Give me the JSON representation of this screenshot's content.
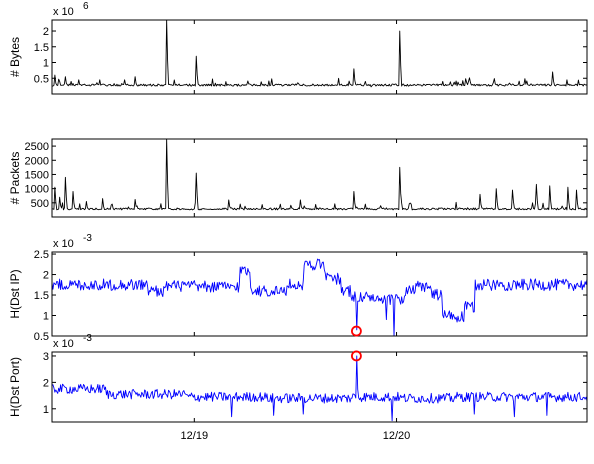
{
  "chart_data": [
    {
      "type": "line",
      "ylabel": "# Bytes",
      "y_multiplier": "x 10",
      "y_exponent": "6",
      "yticks": [
        0.5,
        1,
        1.5,
        2
      ],
      "ytick_labels": [
        "0.5",
        "1",
        "1.5",
        "2"
      ],
      "ylim": [
        0,
        2.35
      ],
      "xlim": [
        0,
        100
      ],
      "line_color": "#000000",
      "grid": false,
      "baseline": 0.25,
      "spikes": [
        {
          "x": 0.5,
          "value": 0.6
        },
        {
          "x": 1.5,
          "value": 0.4
        },
        {
          "x": 2.5,
          "value": 0.55
        },
        {
          "x": 3.5,
          "value": 0.4
        },
        {
          "x": 5.0,
          "value": 0.45
        },
        {
          "x": 9.0,
          "value": 0.45
        },
        {
          "x": 13.5,
          "value": 0.45
        },
        {
          "x": 15.5,
          "value": 0.55
        },
        {
          "x": 21.5,
          "value": 2.35
        },
        {
          "x": 27.0,
          "value": 1.2
        },
        {
          "x": 56.5,
          "value": 0.8
        },
        {
          "x": 59.5,
          "value": 0.3
        },
        {
          "x": 65.0,
          "value": 2.0
        },
        {
          "x": 73.0,
          "value": 0.4
        },
        {
          "x": 93.5,
          "value": 0.7
        }
      ]
    },
    {
      "type": "line",
      "ylabel": "# Packets",
      "yticks": [
        500,
        1000,
        1500,
        2000,
        2500
      ],
      "ytick_labels": [
        "500",
        "1000",
        "1500",
        "2000",
        "2500"
      ],
      "ylim": [
        0,
        2750
      ],
      "xlim": [
        0,
        100
      ],
      "line_color": "#000000",
      "grid": false,
      "baseline": 250,
      "spikes": [
        {
          "x": 0.5,
          "value": 1050
        },
        {
          "x": 1.5,
          "value": 700
        },
        {
          "x": 2.5,
          "value": 1400
        },
        {
          "x": 4.0,
          "value": 900
        },
        {
          "x": 6.5,
          "value": 550
        },
        {
          "x": 9.5,
          "value": 650
        },
        {
          "x": 15.5,
          "value": 620
        },
        {
          "x": 21.5,
          "value": 2750
        },
        {
          "x": 27.0,
          "value": 1550
        },
        {
          "x": 33.0,
          "value": 600
        },
        {
          "x": 46.5,
          "value": 600
        },
        {
          "x": 56.5,
          "value": 900
        },
        {
          "x": 65.0,
          "value": 1750
        },
        {
          "x": 80.0,
          "value": 800
        },
        {
          "x": 83.0,
          "value": 1000
        },
        {
          "x": 86.0,
          "value": 950
        },
        {
          "x": 90.5,
          "value": 1150
        },
        {
          "x": 93.0,
          "value": 1100
        },
        {
          "x": 96.5,
          "value": 1050
        },
        {
          "x": 98.0,
          "value": 950
        }
      ]
    },
    {
      "type": "line",
      "ylabel": "H(Dst IP)",
      "y_multiplier": "x 10",
      "y_exponent": "-3",
      "yticks": [
        0.5,
        1,
        1.5,
        2,
        2.5
      ],
      "ytick_labels": [
        "0.5",
        "1",
        "1.5",
        "2",
        "2.5"
      ],
      "ylim": [
        0.5,
        2.55
      ],
      "xlim": [
        0,
        100
      ],
      "line_color": "#0000ff",
      "grid": false,
      "level_segments": [
        {
          "x": [
            0,
            18
          ],
          "value": 1.75
        },
        {
          "x": [
            18,
            21
          ],
          "value": 1.6
        },
        {
          "x": [
            21,
            27
          ],
          "value": 1.72
        },
        {
          "x": [
            27,
            35
          ],
          "value": 1.7
        },
        {
          "x": [
            35,
            37
          ],
          "value": 2.1
        },
        {
          "x": [
            37,
            38
          ],
          "value": 1.65
        },
        {
          "x": [
            38,
            44
          ],
          "value": 1.6
        },
        {
          "x": [
            44,
            47
          ],
          "value": 1.75
        },
        {
          "x": [
            47,
            51
          ],
          "value": 2.25
        },
        {
          "x": [
            51,
            54
          ],
          "value": 1.9
        },
        {
          "x": [
            54,
            56
          ],
          "value": 1.6
        },
        {
          "x": [
            56,
            60
          ],
          "value": 1.45
        },
        {
          "x": [
            60,
            63
          ],
          "value": 1.35
        },
        {
          "x": [
            63,
            66
          ],
          "value": 1.4
        },
        {
          "x": [
            66,
            68
          ],
          "value": 1.6
        },
        {
          "x": [
            68,
            71
          ],
          "value": 1.7
        },
        {
          "x": [
            71,
            73
          ],
          "value": 1.5
        },
        {
          "x": [
            73,
            75
          ],
          "value": 1.0
        },
        {
          "x": [
            75,
            77
          ],
          "value": 0.95
        },
        {
          "x": [
            77,
            79
          ],
          "value": 1.2
        },
        {
          "x": [
            79,
            100
          ],
          "value": 1.75
        }
      ],
      "dips": [
        {
          "x": 56.9,
          "value": 0.65
        },
        {
          "x": 64.0,
          "value": 0.5
        },
        {
          "x": 62.5,
          "value": 0.9
        }
      ],
      "anomaly": {
        "x": 56.9,
        "value": 0.62,
        "color": "#ff0000"
      }
    },
    {
      "type": "line",
      "ylabel": "H(Dst Port)",
      "y_multiplier": "x 10",
      "y_exponent": "-3",
      "yticks": [
        1,
        2,
        3
      ],
      "ytick_labels": [
        "1",
        "2",
        "3"
      ],
      "ylim": [
        0.5,
        3.15
      ],
      "xlim": [
        0,
        100
      ],
      "line_color": "#0000ff",
      "grid": false,
      "level_segments": [
        {
          "x": [
            0,
            10
          ],
          "value": 1.75
        },
        {
          "x": [
            10,
            25
          ],
          "value": 1.55
        },
        {
          "x": [
            25,
            40
          ],
          "value": 1.45
        },
        {
          "x": [
            40,
            56
          ],
          "value": 1.4
        },
        {
          "x": [
            56,
            65
          ],
          "value": 1.45
        },
        {
          "x": [
            65,
            75
          ],
          "value": 1.4
        },
        {
          "x": [
            75,
            100
          ],
          "value": 1.45
        }
      ],
      "dips": [
        {
          "x": 33.5,
          "value": 0.7
        },
        {
          "x": 41.5,
          "value": 0.75
        },
        {
          "x": 47.0,
          "value": 0.8
        },
        {
          "x": 63.5,
          "value": 0.55
        },
        {
          "x": 79.0,
          "value": 0.8
        },
        {
          "x": 86.5,
          "value": 0.7
        },
        {
          "x": 92.5,
          "value": 0.75
        }
      ],
      "spikes": [
        {
          "x": 56.9,
          "value": 3.0
        }
      ],
      "anomaly": {
        "x": 56.9,
        "value": 3.0,
        "color": "#ff0000"
      },
      "xticks": [
        26.6,
        64.4
      ],
      "xtick_labels": [
        "12/19",
        "12/20"
      ]
    }
  ]
}
